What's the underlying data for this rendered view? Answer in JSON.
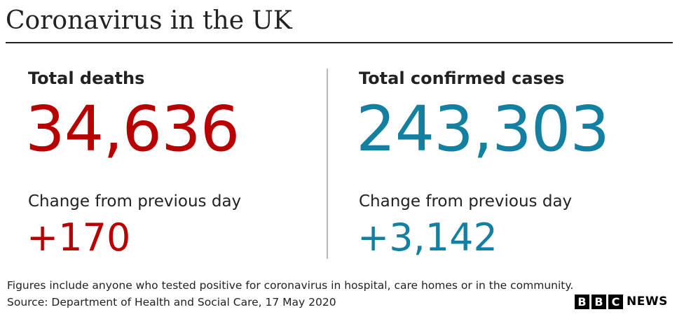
{
  "title": "Coronavirus in the UK",
  "deaths": {
    "label": "Total deaths",
    "total": "34,636",
    "change_label": "Change from previous day",
    "change": "+170",
    "color": "#b80000"
  },
  "cases": {
    "label": "Total confirmed cases",
    "total": "243,303",
    "change_label": "Change from previous day",
    "change": "+3,142",
    "color": "#1380a1"
  },
  "footer": {
    "note": "Figures include anyone who tested positive for coronavirus in hospital, care homes or in the community.",
    "source": "Source: Department of Health and Social Care, 17 May 2020"
  },
  "logo": {
    "letters": [
      "B",
      "B",
      "C"
    ],
    "word": "NEWS"
  }
}
